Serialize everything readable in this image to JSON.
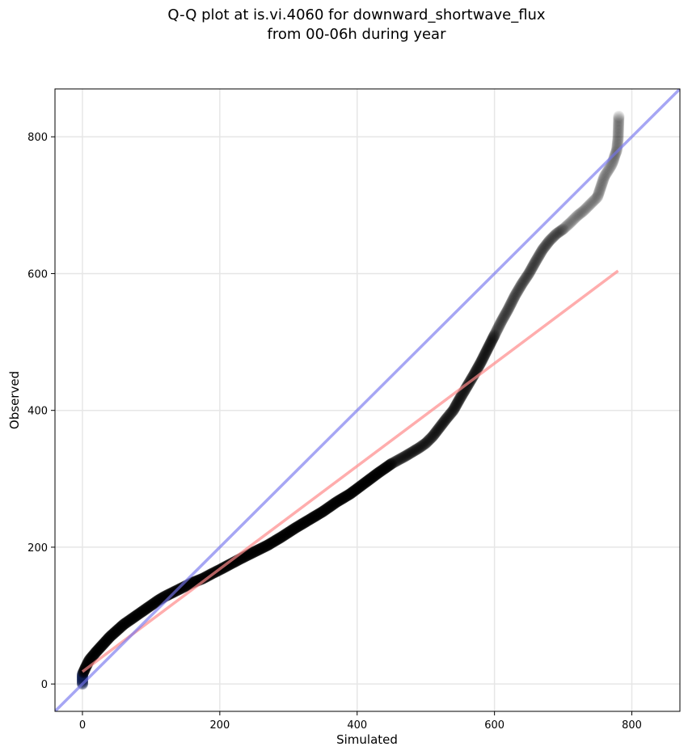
{
  "chart_data": {
    "type": "scatter",
    "title": "Q-Q plot at is.vi.4060 for downward_shortwave_flux",
    "subtitle": "from 00-06h during year",
    "xlabel": "Simulated",
    "ylabel": "Observed",
    "xlim": [
      -40,
      870
    ],
    "ylim": [
      -40,
      870
    ],
    "xticks": [
      0,
      200,
      400,
      600,
      800
    ],
    "yticks": [
      0,
      200,
      400,
      600,
      800
    ],
    "grid": true,
    "legend": "none",
    "colors": {
      "points": "#000000",
      "reference_line": "#7777ee",
      "fit_line": "#ff8a8a",
      "low_points": "#0b1a4d"
    },
    "reference_line": {
      "x": [
        -40,
        870
      ],
      "y": [
        -40,
        870
      ]
    },
    "fit_line": {
      "x": [
        0,
        780
      ],
      "y": [
        18,
        604
      ]
    },
    "quantiles": {
      "x": [
        0,
        0,
        0,
        0,
        0,
        5,
        10,
        20,
        30,
        40,
        50,
        60,
        70,
        80,
        90,
        100,
        110,
        120,
        130,
        140,
        150,
        160,
        175,
        190,
        200,
        215,
        230,
        250,
        270,
        290,
        310,
        330,
        350,
        370,
        390,
        410,
        430,
        450,
        470,
        490,
        500,
        510,
        520,
        530,
        540,
        550,
        560,
        570,
        580,
        590,
        600,
        610,
        620,
        630,
        640,
        650,
        660,
        670,
        680,
        690,
        700,
        710,
        720,
        730,
        740,
        750,
        760,
        765,
        770,
        773,
        775,
        778,
        780,
        781
      ],
      "y": [
        0,
        3,
        6,
        10,
        14,
        25,
        35,
        47,
        58,
        69,
        78,
        87,
        94,
        101,
        108,
        115,
        122,
        128,
        133,
        138,
        143,
        148,
        154,
        162,
        167,
        175,
        183,
        193,
        203,
        215,
        228,
        240,
        252,
        266,
        278,
        293,
        308,
        322,
        333,
        345,
        352,
        362,
        375,
        388,
        400,
        418,
        435,
        452,
        470,
        490,
        510,
        530,
        548,
        568,
        585,
        600,
        618,
        635,
        648,
        658,
        665,
        674,
        684,
        692,
        702,
        712,
        742,
        750,
        758,
        765,
        772,
        780,
        798,
        830
      ]
    }
  }
}
